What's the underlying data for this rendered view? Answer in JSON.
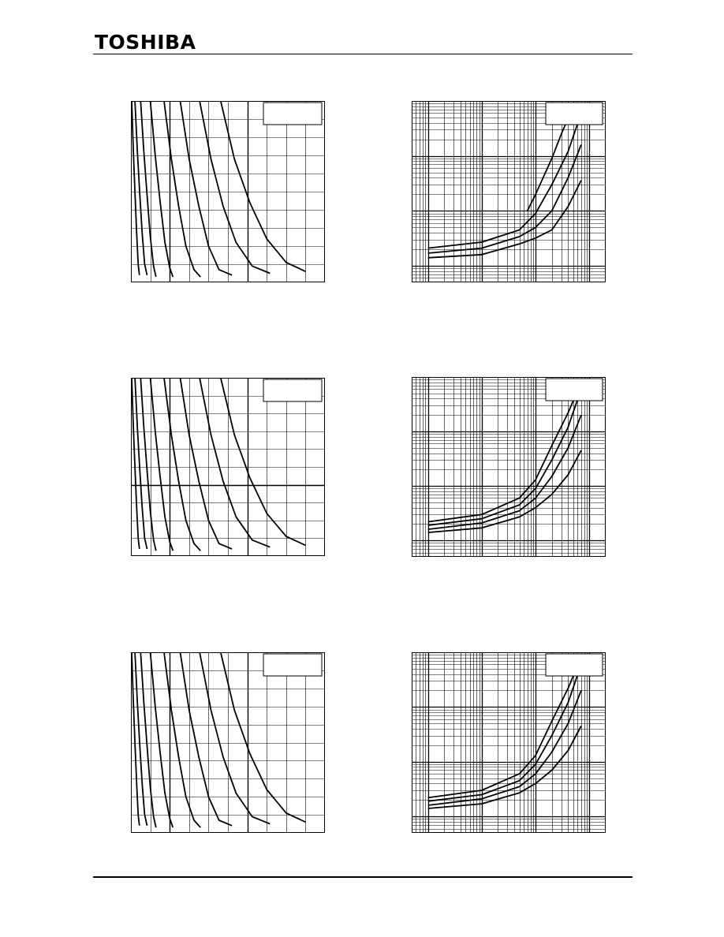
{
  "header": {
    "brand": "TOSHIBA"
  },
  "chart_data": [
    {
      "panel": "row1-left",
      "type": "line",
      "scale": "linear-linear",
      "series": [
        {
          "x": [
            0.1,
            0.3,
            0.5,
            0.7,
            0.9,
            1.05
          ],
          "y": [
            1.0,
            0.72,
            0.5,
            0.28,
            0.1,
            0.04
          ]
        },
        {
          "x": [
            0.5,
            0.8,
            1.1,
            1.4,
            1.7,
            2.0
          ],
          "y": [
            1.0,
            0.72,
            0.48,
            0.27,
            0.1,
            0.04
          ]
        },
        {
          "x": [
            1.2,
            1.6,
            2.0,
            2.4,
            2.8,
            3.1
          ],
          "y": [
            1.0,
            0.72,
            0.48,
            0.25,
            0.09,
            0.03
          ]
        },
        {
          "x": [
            2.4,
            3.0,
            3.6,
            4.2,
            4.8,
            5.2
          ],
          "y": [
            1.0,
            0.7,
            0.45,
            0.22,
            0.08,
            0.03
          ]
        },
        {
          "x": [
            4.1,
            5.0,
            5.9,
            6.8,
            7.8,
            8.6
          ],
          "y": [
            1.0,
            0.68,
            0.42,
            0.2,
            0.07,
            0.03
          ]
        },
        {
          "x": [
            6.1,
            7.2,
            8.4,
            9.6,
            10.9,
            12.5
          ],
          "y": [
            1.0,
            0.68,
            0.42,
            0.2,
            0.07,
            0.04
          ]
        },
        {
          "x": [
            8.5,
            9.9,
            11.4,
            13.0,
            15.0,
            17.2
          ],
          "y": [
            1.0,
            0.68,
            0.42,
            0.22,
            0.09,
            0.05
          ]
        },
        {
          "x": [
            11.1,
            12.8,
            14.7,
            16.8,
            19.2,
            21.6
          ],
          "y": [
            1.0,
            0.68,
            0.44,
            0.24,
            0.11,
            0.06
          ]
        }
      ]
    },
    {
      "panel": "row1-right",
      "type": "line",
      "scale": "log-log",
      "series": [
        {
          "x": [
            0.07,
            0.1,
            0.2,
            0.3,
            0.5
          ],
          "y": [
            0.1,
            0.2,
            0.9,
            2.5,
            8.0
          ]
        },
        {
          "x": [
            0.001,
            0.01,
            0.05,
            0.1,
            0.2,
            0.4,
            0.7
          ],
          "y": [
            0.021,
            0.027,
            0.045,
            0.09,
            0.3,
            1.2,
            6.0
          ]
        },
        {
          "x": [
            0.001,
            0.01,
            0.05,
            0.1,
            0.2,
            0.4,
            0.7
          ],
          "y": [
            0.017,
            0.021,
            0.034,
            0.05,
            0.1,
            0.4,
            1.6
          ]
        },
        {
          "x": [
            0.001,
            0.01,
            0.05,
            0.1,
            0.2,
            0.4,
            0.7
          ],
          "y": [
            0.014,
            0.016,
            0.025,
            0.032,
            0.045,
            0.12,
            0.36
          ]
        }
      ]
    },
    {
      "panel": "row2-left",
      "type": "line",
      "scale": "linear-linear",
      "series": [
        {
          "x": [
            0.1,
            0.3,
            0.5,
            0.7,
            0.9,
            1.05
          ],
          "y": [
            1.0,
            0.72,
            0.5,
            0.28,
            0.1,
            0.04
          ]
        },
        {
          "x": [
            0.5,
            0.8,
            1.1,
            1.4,
            1.7,
            2.0
          ],
          "y": [
            1.0,
            0.72,
            0.48,
            0.27,
            0.1,
            0.04
          ]
        },
        {
          "x": [
            1.2,
            1.6,
            2.0,
            2.4,
            2.8,
            3.1
          ],
          "y": [
            1.0,
            0.72,
            0.48,
            0.25,
            0.09,
            0.03
          ]
        },
        {
          "x": [
            2.4,
            3.0,
            3.6,
            4.2,
            4.8,
            5.2
          ],
          "y": [
            1.0,
            0.7,
            0.45,
            0.22,
            0.08,
            0.03
          ]
        },
        {
          "x": [
            4.1,
            5.0,
            5.9,
            6.8,
            7.8,
            8.6
          ],
          "y": [
            1.0,
            0.68,
            0.42,
            0.2,
            0.07,
            0.03
          ]
        },
        {
          "x": [
            6.1,
            7.2,
            8.4,
            9.6,
            10.9,
            12.5
          ],
          "y": [
            1.0,
            0.68,
            0.42,
            0.2,
            0.07,
            0.04
          ]
        },
        {
          "x": [
            8.5,
            9.9,
            11.4,
            13.0,
            15.0,
            17.2
          ],
          "y": [
            1.0,
            0.68,
            0.42,
            0.22,
            0.09,
            0.05
          ]
        },
        {
          "x": [
            11.1,
            12.8,
            14.7,
            16.8,
            19.2,
            21.6
          ],
          "y": [
            1.0,
            0.68,
            0.44,
            0.24,
            0.11,
            0.06
          ]
        }
      ]
    },
    {
      "panel": "row2-right",
      "type": "line",
      "scale": "log-log",
      "series": [
        {
          "x": [
            0.001,
            0.01,
            0.05,
            0.1,
            0.2,
            0.4,
            0.7
          ],
          "y": [
            0.022,
            0.03,
            0.06,
            0.13,
            0.55,
            2.2,
            8.0
          ]
        },
        {
          "x": [
            0.001,
            0.01,
            0.05,
            0.1,
            0.2,
            0.4,
            0.7
          ],
          "y": [
            0.019,
            0.025,
            0.045,
            0.09,
            0.3,
            1.2,
            6.0
          ]
        },
        {
          "x": [
            0.001,
            0.01,
            0.05,
            0.1,
            0.2,
            0.4,
            0.7
          ],
          "y": [
            0.016,
            0.021,
            0.035,
            0.06,
            0.15,
            0.5,
            2.0
          ]
        },
        {
          "x": [
            0.001,
            0.01,
            0.05,
            0.1,
            0.2,
            0.4,
            0.7
          ],
          "y": [
            0.014,
            0.017,
            0.027,
            0.04,
            0.07,
            0.16,
            0.45
          ]
        }
      ]
    },
    {
      "panel": "row3-left",
      "type": "line",
      "scale": "linear-linear",
      "series": [
        {
          "x": [
            0.1,
            0.3,
            0.5,
            0.7,
            0.9,
            1.05
          ],
          "y": [
            1.0,
            0.72,
            0.5,
            0.28,
            0.1,
            0.04
          ]
        },
        {
          "x": [
            0.5,
            0.8,
            1.1,
            1.4,
            1.7,
            2.0
          ],
          "y": [
            1.0,
            0.72,
            0.48,
            0.27,
            0.1,
            0.04
          ]
        },
        {
          "x": [
            1.2,
            1.6,
            2.0,
            2.4,
            2.8,
            3.1
          ],
          "y": [
            1.0,
            0.72,
            0.48,
            0.25,
            0.09,
            0.03
          ]
        },
        {
          "x": [
            2.4,
            3.0,
            3.6,
            4.2,
            4.8,
            5.2
          ],
          "y": [
            1.0,
            0.7,
            0.45,
            0.22,
            0.08,
            0.03
          ]
        },
        {
          "x": [
            4.1,
            5.0,
            5.9,
            6.8,
            7.8,
            8.6
          ],
          "y": [
            1.0,
            0.68,
            0.42,
            0.2,
            0.07,
            0.03
          ]
        },
        {
          "x": [
            6.1,
            7.2,
            8.4,
            9.6,
            10.9,
            12.5
          ],
          "y": [
            1.0,
            0.68,
            0.42,
            0.2,
            0.07,
            0.04
          ]
        },
        {
          "x": [
            8.5,
            9.9,
            11.4,
            13.0,
            15.0,
            17.2
          ],
          "y": [
            1.0,
            0.68,
            0.42,
            0.22,
            0.09,
            0.05
          ]
        },
        {
          "x": [
            11.1,
            12.8,
            14.7,
            16.8,
            19.2,
            21.6
          ],
          "y": [
            1.0,
            0.68,
            0.44,
            0.24,
            0.11,
            0.06
          ]
        }
      ]
    },
    {
      "panel": "row3-right",
      "type": "line",
      "scale": "log-log",
      "series": [
        {
          "x": [
            0.001,
            0.01,
            0.05,
            0.1,
            0.2,
            0.4,
            0.7
          ],
          "y": [
            0.022,
            0.03,
            0.06,
            0.13,
            0.55,
            2.2,
            8.0
          ]
        },
        {
          "x": [
            0.001,
            0.01,
            0.05,
            0.1,
            0.2,
            0.4,
            0.7
          ],
          "y": [
            0.019,
            0.025,
            0.045,
            0.09,
            0.3,
            1.2,
            6.0
          ]
        },
        {
          "x": [
            0.001,
            0.01,
            0.05,
            0.1,
            0.2,
            0.4,
            0.7
          ],
          "y": [
            0.016,
            0.021,
            0.035,
            0.06,
            0.15,
            0.5,
            2.0
          ]
        },
        {
          "x": [
            0.001,
            0.01,
            0.05,
            0.1,
            0.2,
            0.4,
            0.7
          ],
          "y": [
            0.014,
            0.017,
            0.027,
            0.04,
            0.07,
            0.16,
            0.45
          ]
        }
      ]
    }
  ],
  "footer": {}
}
